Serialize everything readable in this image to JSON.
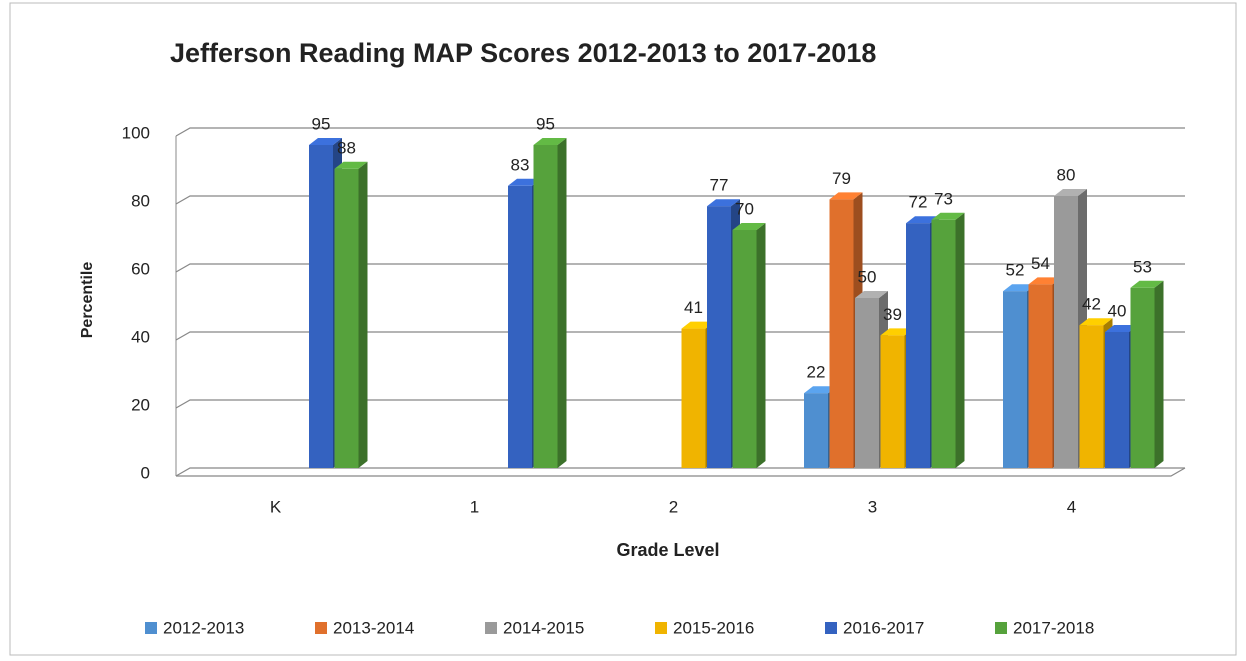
{
  "chart_data": {
    "type": "bar",
    "title": "Jefferson Reading MAP Scores 2012-2013 to 2017-2018",
    "x_label": "Grade Level",
    "y_label": "Percentile",
    "categories": [
      "K",
      "1",
      "2",
      "3",
      "4"
    ],
    "series": [
      {
        "name": "2012-2013",
        "color": "#4f8fd0",
        "values": [
          null,
          null,
          null,
          22,
          52
        ]
      },
      {
        "name": "2013-2014",
        "color": "#e0702c",
        "values": [
          null,
          null,
          null,
          79,
          54
        ]
      },
      {
        "name": "2014-2015",
        "color": "#9a9a9a",
        "values": [
          null,
          null,
          null,
          50,
          80
        ]
      },
      {
        "name": "2015-2016",
        "color": "#f0b400",
        "values": [
          null,
          null,
          41,
          39,
          42
        ]
      },
      {
        "name": "2016-2017",
        "color": "#3462c0",
        "values": [
          95,
          83,
          77,
          72,
          40
        ]
      },
      {
        "name": "2017-2018",
        "color": "#56a23c",
        "values": [
          88,
          95,
          70,
          73,
          53
        ]
      }
    ],
    "ylim": [
      0,
      100
    ],
    "yticks": [
      0,
      20,
      40,
      60,
      80,
      100
    ],
    "grid": true,
    "legend": "bottom"
  }
}
